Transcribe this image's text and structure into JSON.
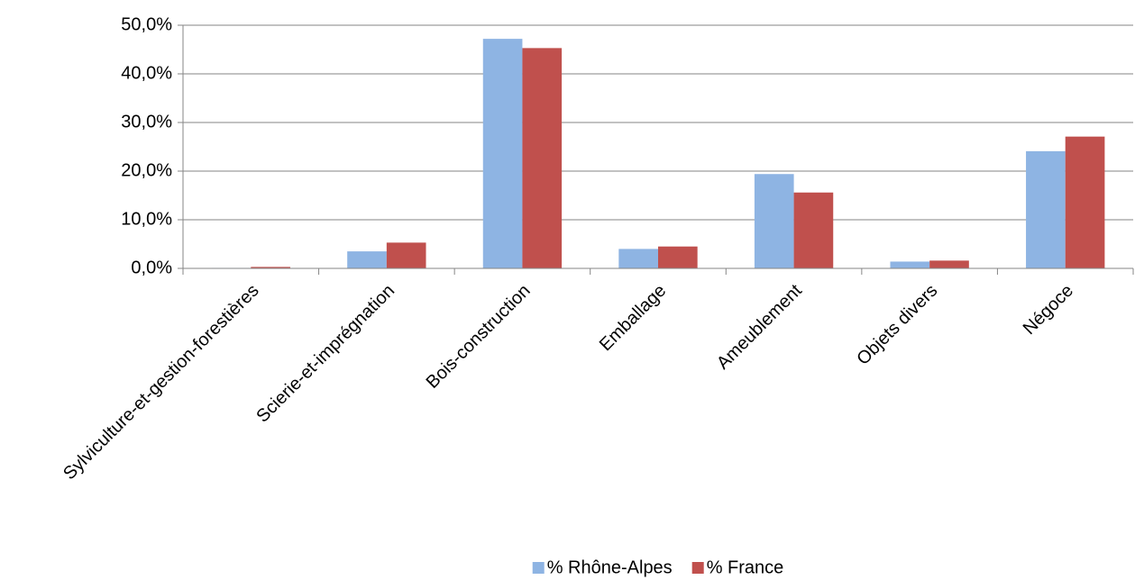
{
  "chart_data": {
    "type": "bar",
    "categories": [
      "Sylviculture-et-gestion-forestières",
      "Scierie-et-imprégnation",
      "Bois-construction",
      "Emballage",
      "Ameublement",
      "Objets divers",
      "Négoce"
    ],
    "series": [
      {
        "name": "% Rhône-Alpes",
        "color": "#8eb4e3",
        "values": [
          0.1,
          3.5,
          47.2,
          4.0,
          19.4,
          1.4,
          24.1
        ]
      },
      {
        "name": "% France",
        "color": "#c0504d",
        "values": [
          0.3,
          5.3,
          45.3,
          4.5,
          15.6,
          1.6,
          27.1
        ]
      }
    ],
    "ylim": [
      0,
      50
    ],
    "yticks": [
      {
        "value": 0,
        "label": "0,0%"
      },
      {
        "value": 10,
        "label": "10,0%"
      },
      {
        "value": 20,
        "label": "20,0%"
      },
      {
        "value": 30,
        "label": "30,0%"
      },
      {
        "value": 40,
        "label": "40,0%"
      },
      {
        "value": 50,
        "label": "50,0%"
      }
    ],
    "grid": true,
    "legend": "bottom"
  }
}
